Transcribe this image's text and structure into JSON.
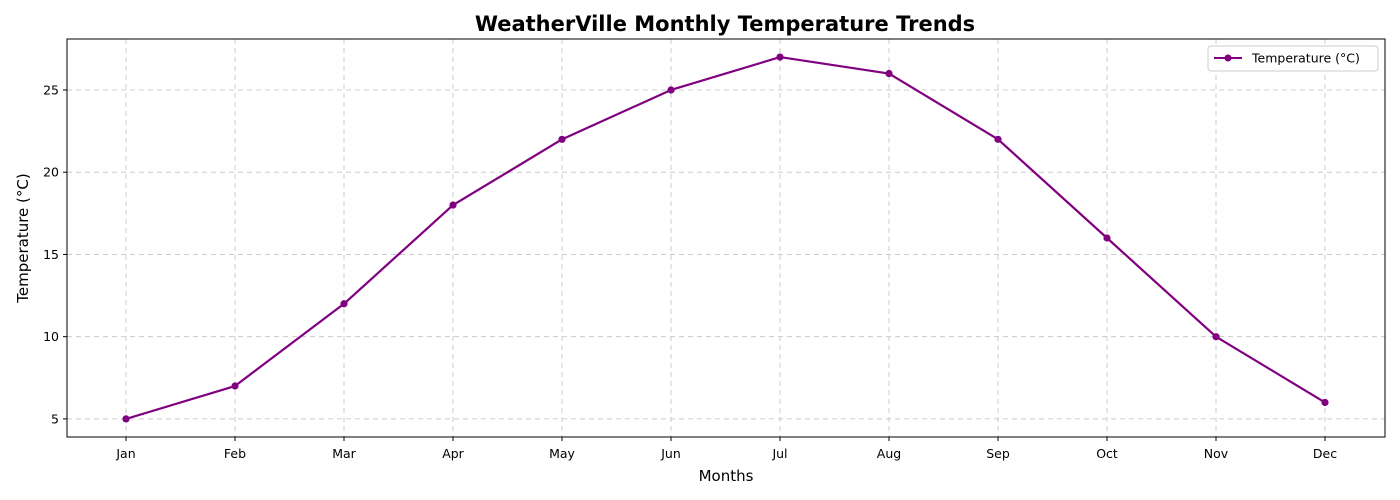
{
  "chart_data": {
    "type": "line",
    "title": "WeatherVille Monthly Temperature Trends",
    "xlabel": "Months",
    "ylabel": "Temperature (°C)",
    "categories": [
      "Jan",
      "Feb",
      "Mar",
      "Apr",
      "May",
      "Jun",
      "Jul",
      "Aug",
      "Sep",
      "Oct",
      "Nov",
      "Dec"
    ],
    "series": [
      {
        "name": "Temperature (°C)",
        "values": [
          5,
          7,
          12,
          18,
          22,
          25,
          27,
          26,
          22,
          16,
          10,
          6
        ],
        "color": "#800080",
        "marker": "circle"
      }
    ],
    "ylim": [
      3.9,
      28.1
    ],
    "yticks": [
      5,
      10,
      15,
      20,
      25
    ],
    "grid": true,
    "grid_style": "dashed",
    "legend_position": "top-right"
  }
}
